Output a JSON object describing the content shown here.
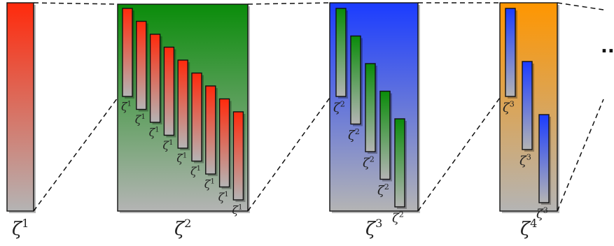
{
  "symbol": "ζ",
  "ellipsis": "...",
  "colors": {
    "red": "#ff2a0c",
    "green": "#0a8c0a",
    "blue": "#1b3cff",
    "orange": "#ff9600",
    "base": "#b4b4b4",
    "stroke": "#111111"
  },
  "levels": [
    {
      "index": 1,
      "label_base": "ζ",
      "label_sup": "1",
      "color": "red",
      "children": []
    },
    {
      "index": 2,
      "label_base": "ζ",
      "label_sup": "2",
      "color": "green",
      "children": {
        "count": 9,
        "color": "red",
        "label_base": "ζ",
        "label_sup": "1"
      }
    },
    {
      "index": 3,
      "label_base": "ζ",
      "label_sup": "3",
      "color": "blue",
      "children": {
        "count": 5,
        "color": "green",
        "label_base": "ζ",
        "label_sup": "2"
      }
    },
    {
      "index": 4,
      "label_base": "ζ",
      "label_sup": "4",
      "color": "orange",
      "children": {
        "count": 3,
        "color": "blue",
        "label_base": "ζ",
        "label_sup": "3"
      }
    }
  ]
}
